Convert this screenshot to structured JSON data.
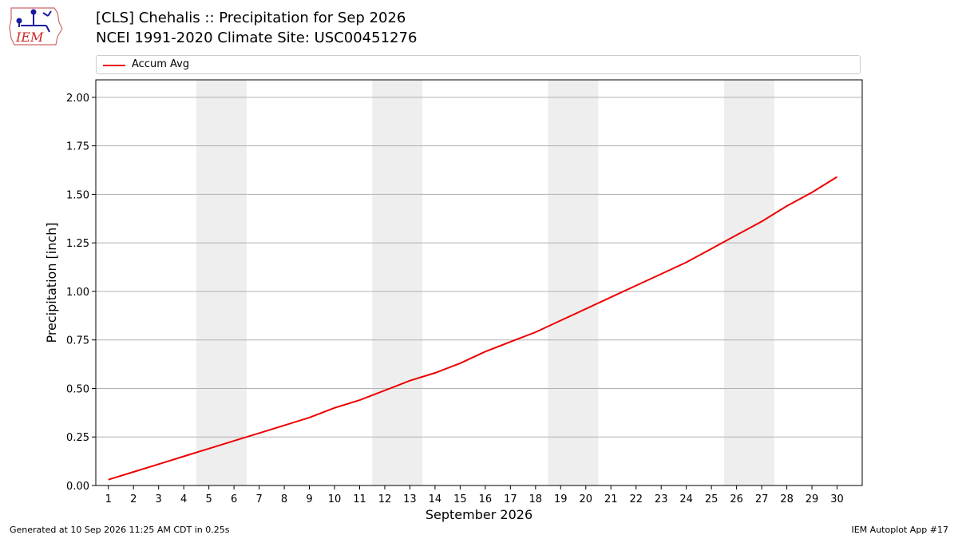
{
  "header": {
    "title_line1": "[CLS] Chehalis :: Precipitation for Sep 2026",
    "title_line2": "NCEI 1991-2020 Climate Site: USC00451276",
    "logo_text": "IEM"
  },
  "footer": {
    "generated": "Generated at 10 Sep 2026 11:25 AM CDT in 0.25s",
    "app": "IEM Autoplot App #17"
  },
  "colors": {
    "series": "#ee0000",
    "weekend_band": "#eeeeee",
    "grid": "#b0b0b0"
  },
  "chart_data": {
    "type": "line",
    "title": "[CLS] Chehalis :: Precipitation for Sep 2026",
    "subtitle": "NCEI 1991-2020 Climate Site: USC00451276",
    "xlabel": "September 2026",
    "ylabel": "Precipitation [inch]",
    "xlim": [
      0.5,
      31.0
    ],
    "ylim": [
      0,
      2.09
    ],
    "yticks": [
      0.0,
      0.25,
      0.5,
      0.75,
      1.0,
      1.25,
      1.5,
      1.75,
      2.0
    ],
    "ytick_labels": [
      "0.00",
      "0.25",
      "0.50",
      "0.75",
      "1.00",
      "1.25",
      "1.50",
      "1.75",
      "2.00"
    ],
    "x": [
      1,
      2,
      3,
      4,
      5,
      6,
      7,
      8,
      9,
      10,
      11,
      12,
      13,
      14,
      15,
      16,
      17,
      18,
      19,
      20,
      21,
      22,
      23,
      24,
      25,
      26,
      27,
      28,
      29,
      30
    ],
    "xtick_labels": [
      "1",
      "2",
      "3",
      "4",
      "5",
      "6",
      "7",
      "8",
      "9",
      "10",
      "11",
      "12",
      "13",
      "14",
      "15",
      "16",
      "17",
      "18",
      "19",
      "20",
      "21",
      "22",
      "23",
      "24",
      "25",
      "26",
      "27",
      "28",
      "29",
      "30"
    ],
    "series": [
      {
        "name": "Accum Avg",
        "values": [
          0.03,
          0.07,
          0.11,
          0.15,
          0.19,
          0.23,
          0.27,
          0.31,
          0.35,
          0.4,
          0.44,
          0.49,
          0.54,
          0.58,
          0.63,
          0.69,
          0.74,
          0.79,
          0.85,
          0.91,
          0.97,
          1.03,
          1.09,
          1.15,
          1.22,
          1.29,
          1.36,
          1.44,
          1.51,
          1.59
        ]
      }
    ],
    "weekend_bands": [
      [
        4.5,
        6.5
      ],
      [
        11.5,
        13.5
      ],
      [
        18.5,
        20.5
      ],
      [
        25.5,
        27.5
      ]
    ],
    "grid": "horizontal",
    "legend": "top"
  }
}
